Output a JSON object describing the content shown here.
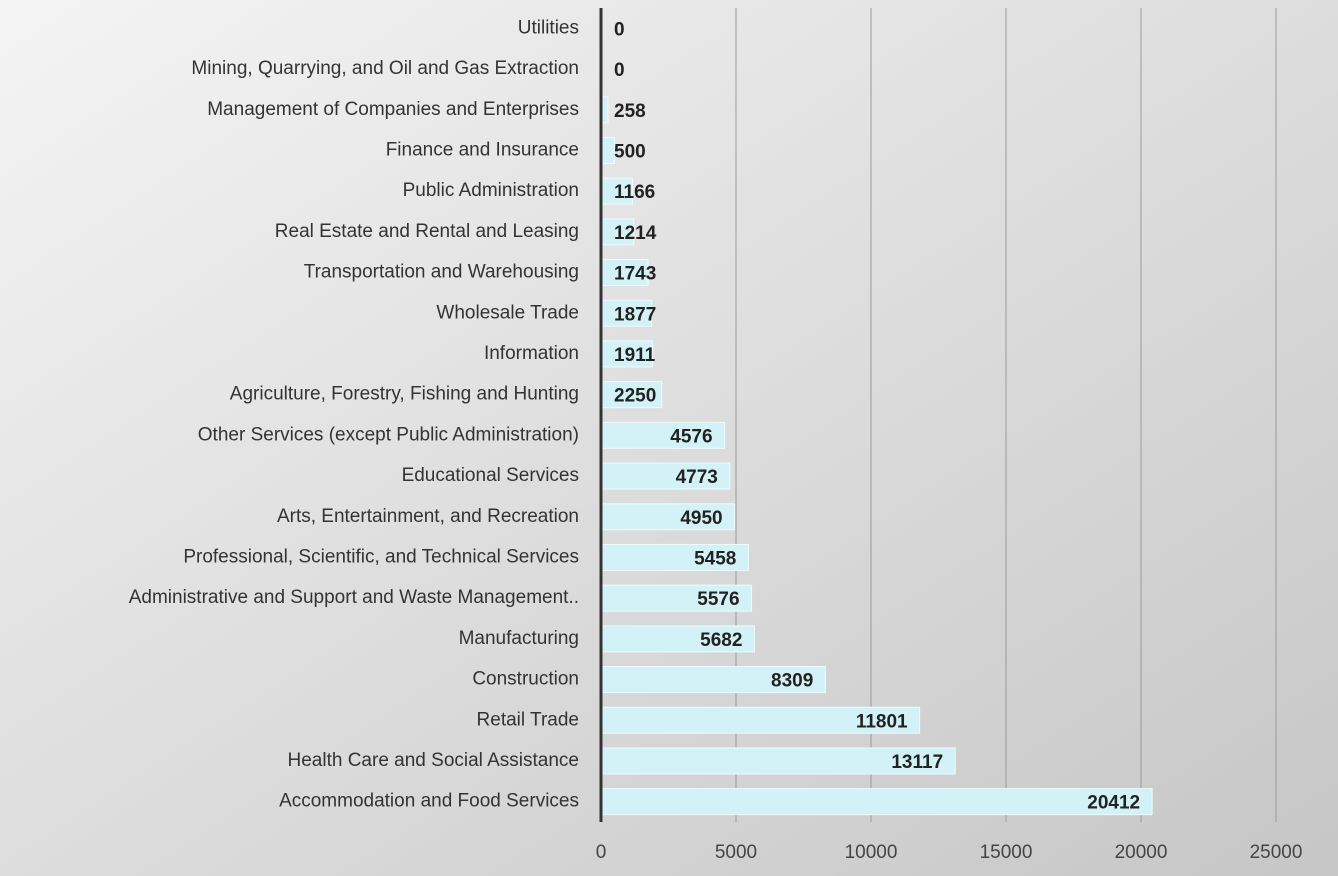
{
  "chart_data": {
    "type": "bar",
    "orientation": "horizontal",
    "categories": [
      "Utilities",
      "Mining, Quarrying, and Oil and Gas Extraction",
      "Management of Companies and Enterprises",
      "Finance and Insurance",
      "Public Administration",
      "Real Estate and Rental and Leasing",
      "Transportation and Warehousing",
      "Wholesale Trade",
      "Information",
      "Agriculture, Forestry, Fishing and Hunting",
      "Other Services (except Public Administration)",
      "Educational Services",
      "Arts, Entertainment, and Recreation",
      "Professional, Scientific, and Technical Services",
      "Administrative and Support and Waste Management..",
      "Manufacturing",
      "Construction",
      "Retail Trade",
      "Health Care and Social Assistance",
      "Accommodation and Food Services"
    ],
    "values": [
      0,
      0,
      258,
      500,
      1166,
      1214,
      1743,
      1877,
      1911,
      2250,
      4576,
      4773,
      4950,
      5458,
      5576,
      5682,
      8309,
      11801,
      13117,
      20412
    ],
    "color": "#d3f2f7",
    "xlim": [
      0,
      25000
    ],
    "xticks": [
      0,
      5000,
      10000,
      15000,
      20000,
      25000
    ],
    "grid": true
  }
}
